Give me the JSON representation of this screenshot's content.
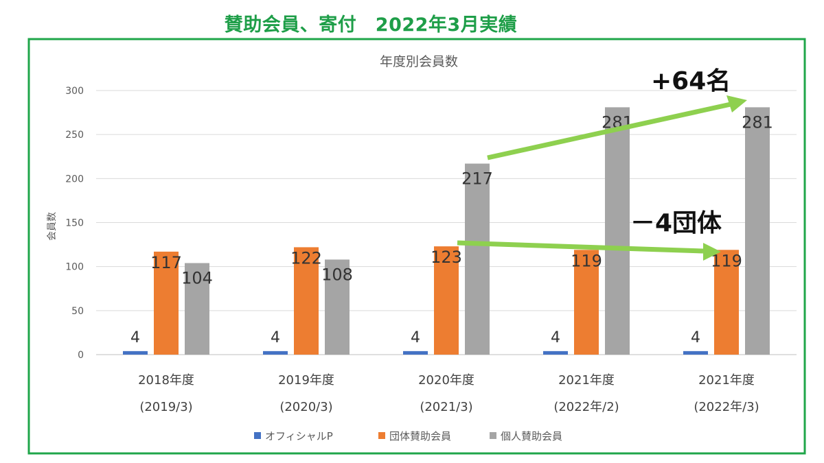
{
  "headline": "賛助会員、寄付　2022年3月実績",
  "colors": {
    "frame": "#1fa64a",
    "headline": "#1e9e48",
    "arrow": "#8ed04f",
    "grid": "#d9d9d9"
  },
  "annotations": {
    "increase": "+64名",
    "decrease": "－4団体"
  },
  "chart_data": {
    "type": "bar",
    "title": "年度別会員数",
    "ylabel": "会員数",
    "xlabel": "",
    "ylim": [
      0,
      300
    ],
    "yticks": [
      0,
      50,
      100,
      150,
      200,
      250,
      300
    ],
    "grid": true,
    "legend_position": "bottom",
    "categories": [
      [
        "2018年度",
        "(2019/3)"
      ],
      [
        "2019年度",
        "(2020/3)"
      ],
      [
        "2020年度",
        "(2021/3)"
      ],
      [
        "2021年度",
        "(2022年/2)"
      ],
      [
        "2021年度",
        "(2022年/3)"
      ]
    ],
    "series": [
      {
        "name": "オフィシャルP",
        "color": "#4472c4",
        "values": [
          4,
          4,
          4,
          4,
          4
        ]
      },
      {
        "name": "団体賛助会員",
        "color": "#ed7d31",
        "values": [
          117,
          122,
          123,
          119,
          119
        ]
      },
      {
        "name": "個人賛助会員",
        "color": "#a5a5a5",
        "values": [
          104,
          108,
          217,
          281,
          281
        ]
      }
    ]
  }
}
